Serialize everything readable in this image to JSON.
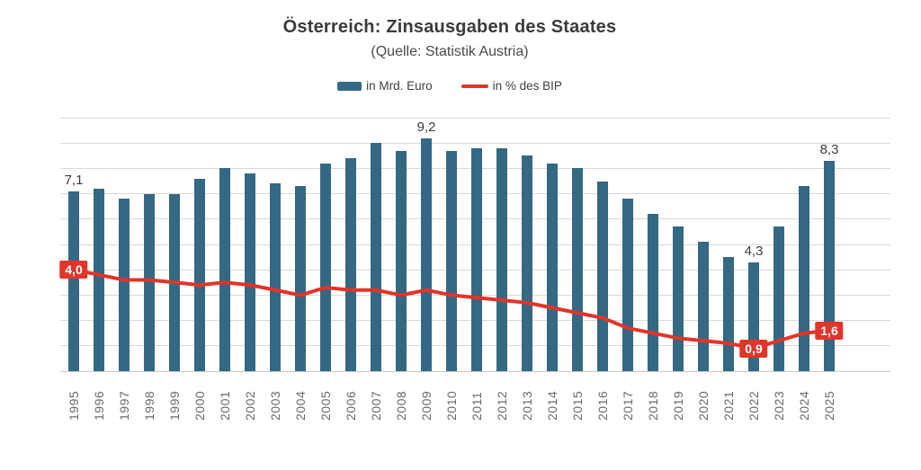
{
  "chart_data": {
    "type": "bar",
    "title": "Österreich: Zinsausgaben des Staates",
    "subtitle": "(Quelle: Statistik Austria)",
    "categories": [
      "1995",
      "1996",
      "1997",
      "1998",
      "1999",
      "2000",
      "2001",
      "2002",
      "2003",
      "2004",
      "2005",
      "2006",
      "2007",
      "2008",
      "2009",
      "2010",
      "2011",
      "2012",
      "2013",
      "2014",
      "2015",
      "2016",
      "2017",
      "2018",
      "2019",
      "2020",
      "2021",
      "2022",
      "2023",
      "2024",
      "2025"
    ],
    "series": [
      {
        "name": "in Mrd. Euro",
        "type": "bar",
        "color": "#356883",
        "values": [
          7.1,
          7.2,
          6.8,
          7.0,
          7.0,
          7.6,
          8.0,
          7.8,
          7.4,
          7.3,
          8.2,
          8.4,
          9.0,
          8.7,
          9.2,
          8.7,
          8.8,
          8.8,
          8.5,
          8.2,
          8.0,
          7.5,
          6.8,
          6.2,
          5.7,
          5.1,
          4.5,
          4.3,
          5.7,
          7.3,
          8.3
        ]
      },
      {
        "name": "in % des BIP",
        "type": "line",
        "color": "#e1352a",
        "values": [
          4.0,
          3.8,
          3.6,
          3.6,
          3.5,
          3.4,
          3.5,
          3.4,
          3.2,
          3.0,
          3.3,
          3.2,
          3.2,
          3.0,
          3.2,
          3.0,
          2.9,
          2.8,
          2.7,
          2.5,
          2.3,
          2.1,
          1.7,
          1.5,
          1.3,
          1.2,
          1.1,
          0.9,
          1.2,
          1.5,
          1.6
        ]
      }
    ],
    "bar_labels": [
      {
        "year": "1995",
        "text": "7,1"
      },
      {
        "year": "2009",
        "text": "9,2"
      },
      {
        "year": "2022",
        "text": "4,3"
      },
      {
        "year": "2025",
        "text": "8,3"
      }
    ],
    "line_labels": [
      {
        "year": "1995",
        "text": "4,0"
      },
      {
        "year": "2022",
        "text": "0,9"
      },
      {
        "year": "2025",
        "text": "1,6"
      }
    ],
    "ylim": [
      0,
      10
    ],
    "grid": true,
    "legend_position": "top",
    "colors": {
      "bar": "#356883",
      "line": "#e1352a",
      "gridline": "#d9d9d9",
      "title_text": "#3b3b3b",
      "axis_text": "#6a6a6a"
    }
  }
}
